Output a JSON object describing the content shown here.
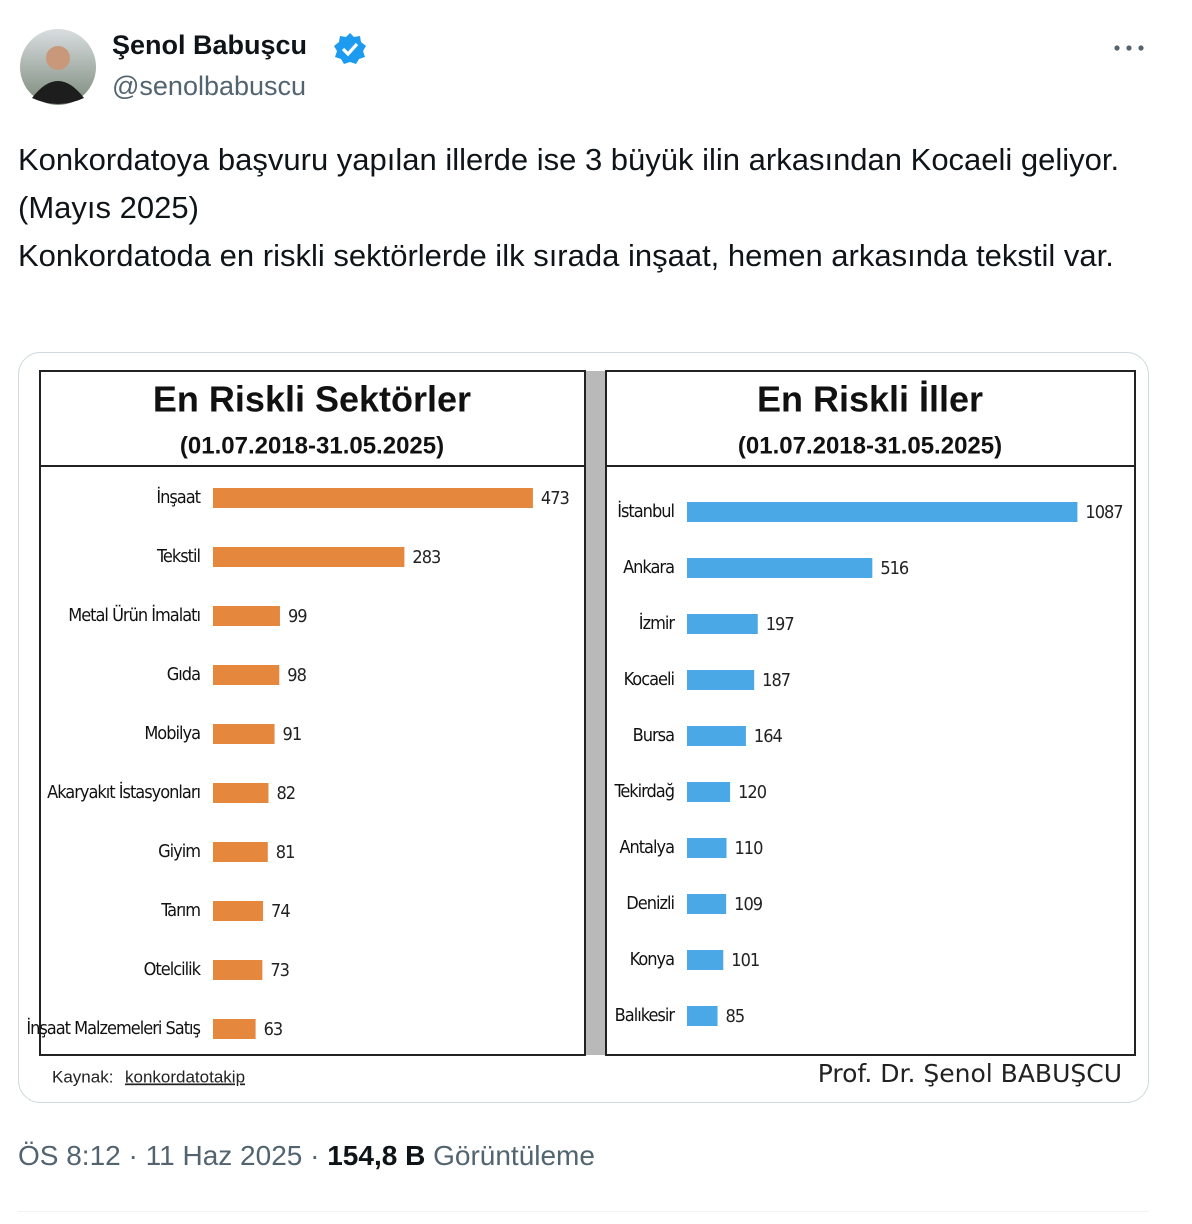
{
  "tweet": {
    "author": "Şenol Babuşcu",
    "handle": "@senolbabuscu",
    "text": [
      "Konkordatoya başvuru yapılan illerde ise 3 büyük ilin arkasından Kocaeli geliyor. (Mayıs 2025)",
      "Konkordatoda en riskli sektörlerde ilk sırada inşaat, hemen arkasında tekstil var."
    ],
    "time": "ÖS 8:12",
    "separator": "·",
    "date": "11 Haz 2025",
    "views": "154,8 B",
    "views_label": "Görüntüleme"
  },
  "image": {
    "source_label": "Kaynak:",
    "source": "konkordatotakip",
    "author": "Prof. Dr. Şenol BABUŞCU"
  },
  "chart_data": [
    {
      "type": "bar",
      "orientation": "horizontal",
      "title": "En Riskli Sektörler",
      "subtitle": "(01.07.2018-31.05.2025)",
      "categories": [
        "İnşaat",
        "Tekstil",
        "Metal Ürün İmalatı",
        "Gıda",
        "Mobilya",
        "Akaryakıt İstasyonları",
        "Giyim",
        "Tarım",
        "Otelcilik",
        "İnşaat Malzemeleri Satış"
      ],
      "values": [
        473,
        283,
        99,
        98,
        91,
        82,
        81,
        74,
        73,
        63
      ],
      "color": "#e5883e",
      "xlim": [
        0,
        550
      ]
    },
    {
      "type": "bar",
      "orientation": "horizontal",
      "title": "En Riskli İller",
      "subtitle": "(01.07.2018-31.05.2025)",
      "categories": [
        "İstanbul",
        "Ankara",
        "İzmir",
        "Kocaeli",
        "Bursa",
        "Tekirdağ",
        "Antalya",
        "Denizli",
        "Konya",
        "Balıkesir"
      ],
      "values": [
        1087,
        516,
        197,
        187,
        164,
        120,
        110,
        109,
        101,
        85
      ],
      "color": "#4aa8e6",
      "xlim": [
        0,
        1200
      ]
    }
  ]
}
